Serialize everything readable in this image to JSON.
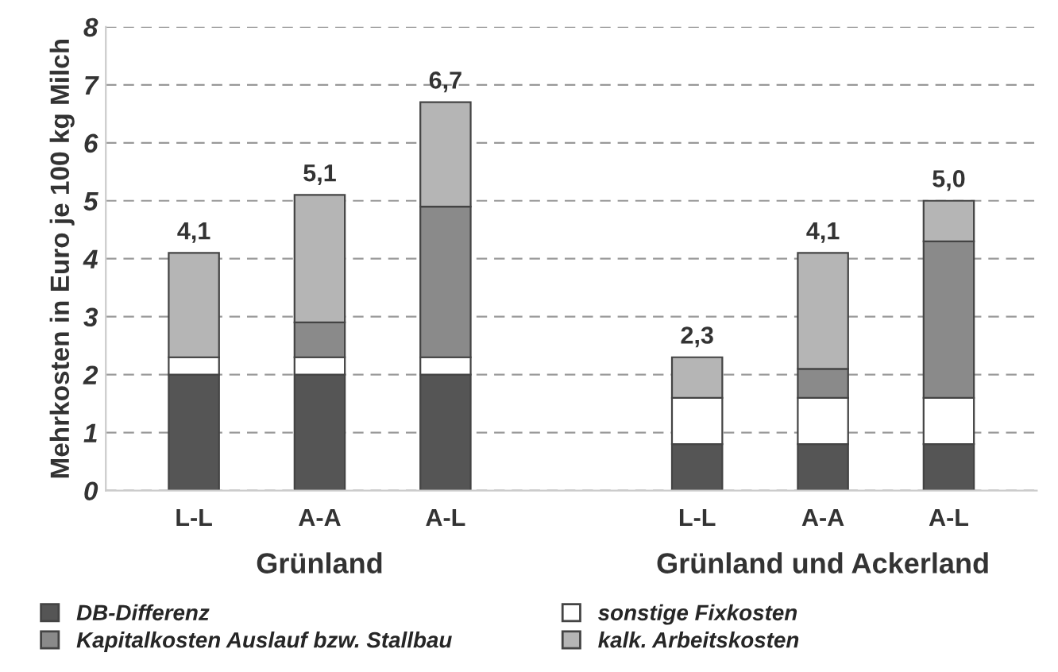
{
  "chart_data": {
    "type": "bar",
    "stacked": true,
    "ylabel": "Mehrkosten in Euro je 100 kg Milch",
    "categories": [
      "L-L",
      "A-A",
      "A-L",
      null,
      "L-L",
      "A-A",
      "A-L"
    ],
    "series": [
      {
        "name": "DB-Differenz",
        "color": "#555555",
        "values": [
          2.0,
          2.0,
          2.0,
          null,
          0.8,
          0.8,
          0.8
        ]
      },
      {
        "name": "sonstige Fixkosten",
        "color": "#ffffff",
        "values": [
          0.3,
          0.3,
          0.3,
          null,
          0.8,
          0.8,
          0.8
        ]
      },
      {
        "name": "Kapitalkosten Auslauf bzw. Stallbau",
        "color": "#8a8a8a",
        "values": [
          null,
          0.6,
          2.6,
          null,
          null,
          0.5,
          2.7
        ]
      },
      {
        "name": "kalk. Arbeitskosten",
        "color": "#b5b5b5",
        "values": [
          1.8,
          2.2,
          1.8,
          null,
          0.7,
          2.0,
          0.7
        ]
      }
    ],
    "totals": [
      "4,1",
      "5,1",
      "6,7",
      null,
      "2,3",
      "4,1",
      "5,0"
    ],
    "annotations": [
      "Grünland",
      "Grünland und Ackerland"
    ],
    "ylim": [
      0,
      8
    ],
    "yticks": [
      0,
      1,
      2,
      3,
      4,
      5,
      6,
      7,
      8
    ],
    "grid": "y",
    "legend": "bottom"
  }
}
